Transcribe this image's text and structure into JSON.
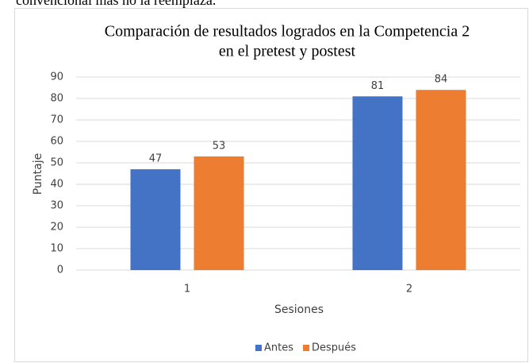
{
  "header_text": "convencional más no la reemplaza.",
  "chart_data": {
    "type": "bar",
    "title": [
      "Comparación de resultados logrados en la Competencia 2",
      "en el pretest y postest"
    ],
    "x_label": "Sesiones",
    "y_label": "Puntaje",
    "categories": [
      "1",
      "2"
    ],
    "series": [
      {
        "name": "Antes",
        "color": "#4472c4",
        "values": [
          47,
          81
        ]
      },
      {
        "name": "Después",
        "color": "#ed7d31",
        "values": [
          53,
          84
        ]
      }
    ],
    "ylim": [
      0,
      90
    ],
    "yticks": [
      0,
      10,
      20,
      30,
      40,
      50,
      60,
      70,
      80,
      90
    ],
    "grid": true,
    "legend": "bottom"
  }
}
